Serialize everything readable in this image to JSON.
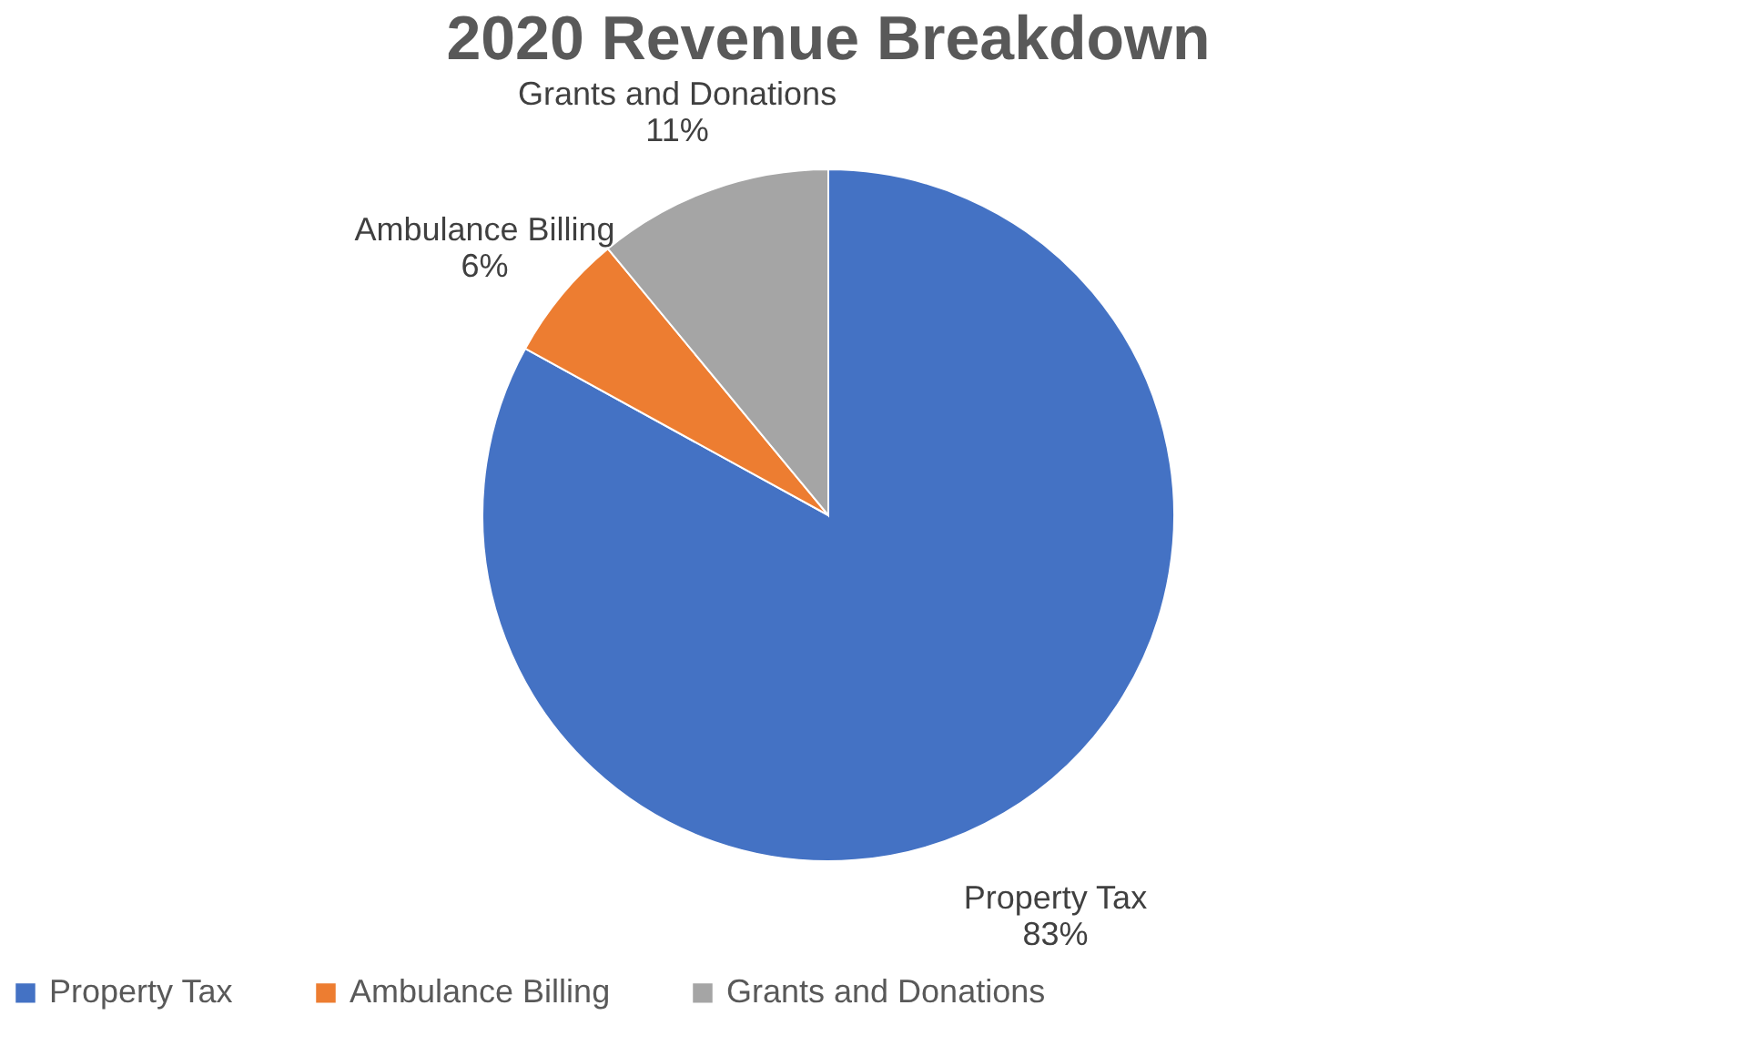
{
  "chart_data": {
    "type": "pie",
    "title": "2020 Revenue Breakdown",
    "categories": [
      "Property Tax",
      "Ambulance Billing",
      "Grants and Donations"
    ],
    "values": [
      83,
      6,
      11
    ],
    "colors": [
      "#4472c4",
      "#ed7d31",
      "#a5a5a5"
    ],
    "value_labels": [
      "83%",
      "6%",
      "11%"
    ],
    "legend": "bottom"
  }
}
